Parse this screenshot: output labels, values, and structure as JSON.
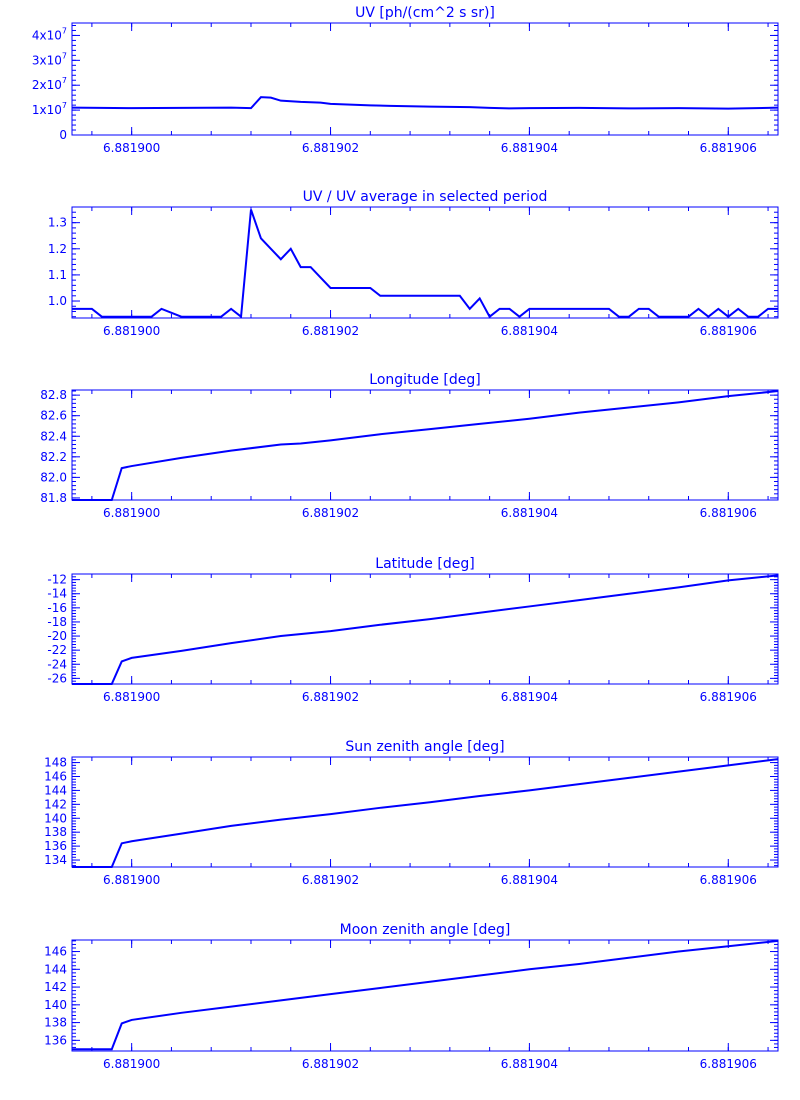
{
  "colors": {
    "ink": "#0000ff",
    "background": "#ffffff"
  },
  "chart_data": [
    {
      "type": "line",
      "title": "UV [ph/(cm^2 s sr)]",
      "xlabel": "",
      "ylabel": "",
      "xlim": [
        6.8818994,
        6.8819065
      ],
      "ylim": [
        0,
        45000000
      ],
      "xticks": [
        6.8819,
        6.881902,
        6.881904,
        6.881906
      ],
      "xtick_labels": [
        "6.881900",
        "6.881902",
        "6.881904",
        "6.881906"
      ],
      "yticks": [
        0,
        10000000,
        20000000,
        30000000,
        40000000
      ],
      "ytick_labels": [
        {
          "base": "0",
          "exp": ""
        },
        {
          "base": "1x10",
          "exp": "7"
        },
        {
          "base": "2x10",
          "exp": "7"
        },
        {
          "base": "3x10",
          "exp": "7"
        },
        {
          "base": "4x10",
          "exp": "7"
        }
      ],
      "grid": false,
      "series": [
        {
          "x": [
            6.8818994,
            6.8819,
            6.881901,
            6.8819012,
            6.8819013,
            6.8819014,
            6.8819015,
            6.8819017,
            6.8819019,
            6.881902,
            6.8819022,
            6.8819024,
            6.8819026,
            6.881903,
            6.8819034,
            6.8819036,
            6.8819038,
            6.881904,
            6.8819045,
            6.881905,
            6.8819055,
            6.881906,
            6.8819064,
            6.8819065
          ],
          "y": [
            11000000,
            10800000,
            11000000,
            10800000,
            15200000,
            15000000,
            13800000,
            13300000,
            13000000,
            12500000,
            12200000,
            11900000,
            11700000,
            11400000,
            11200000,
            10900000,
            10700000,
            10800000,
            10900000,
            10700000,
            10800000,
            10600000,
            10900000,
            11000000
          ]
        }
      ]
    },
    {
      "type": "line",
      "title": "UV / UV average in selected period",
      "xlabel": "",
      "ylabel": "",
      "xlim": [
        6.8818994,
        6.8819065
      ],
      "ylim": [
        0.935,
        1.36
      ],
      "xticks": [
        6.8819,
        6.881902,
        6.881904,
        6.881906
      ],
      "xtick_labels": [
        "6.881900",
        "6.881902",
        "6.881904",
        "6.881906"
      ],
      "yticks": [
        1.0,
        1.1,
        1.2,
        1.3
      ],
      "ytick_labels": [
        {
          "base": "1.0",
          "exp": ""
        },
        {
          "base": "1.1",
          "exp": ""
        },
        {
          "base": "1.2",
          "exp": ""
        },
        {
          "base": "1.3",
          "exp": ""
        }
      ],
      "grid": false,
      "series": [
        {
          "x": [
            6.8818994,
            6.8818996,
            6.8818997,
            6.8818998,
            6.8818999,
            6.8819,
            6.8819002,
            6.8819003,
            6.8819005,
            6.8819006,
            6.8819008,
            6.8819009,
            6.881901,
            6.8819011,
            6.8819012,
            6.8819013,
            6.8819014,
            6.8819015,
            6.8819016,
            6.8819017,
            6.8819018,
            6.8819019,
            6.881902,
            6.8819021,
            6.8819022,
            6.8819023,
            6.8819024,
            6.8819025,
            6.8819026,
            6.8819027,
            6.8819028,
            6.8819029,
            6.881903,
            6.8819031,
            6.8819032,
            6.8819033,
            6.8819034,
            6.8819035,
            6.8819036,
            6.8819037,
            6.8819038,
            6.8819039,
            6.881904,
            6.8819041,
            6.8819042,
            6.8819043,
            6.8819044,
            6.8819045,
            6.8819046,
            6.8819047,
            6.8819048,
            6.8819049,
            6.881905,
            6.8819051,
            6.8819052,
            6.8819053,
            6.8819054,
            6.8819055,
            6.8819056,
            6.8819057,
            6.8819058,
            6.8819059,
            6.881906,
            6.8819061,
            6.8819062,
            6.8819063,
            6.8819064,
            6.8819065
          ],
          "y": [
            0.97,
            0.97,
            0.94,
            0.94,
            0.94,
            0.94,
            0.94,
            0.97,
            0.94,
            0.94,
            0.94,
            0.94,
            0.97,
            0.94,
            1.35,
            1.24,
            1.2,
            1.16,
            1.2,
            1.13,
            1.13,
            1.09,
            1.05,
            1.05,
            1.05,
            1.05,
            1.05,
            1.02,
            1.02,
            1.02,
            1.02,
            1.02,
            1.02,
            1.02,
            1.02,
            1.02,
            0.97,
            1.01,
            0.94,
            0.97,
            0.97,
            0.94,
            0.97,
            0.97,
            0.97,
            0.97,
            0.97,
            0.97,
            0.97,
            0.97,
            0.97,
            0.94,
            0.94,
            0.97,
            0.97,
            0.94,
            0.94,
            0.94,
            0.94,
            0.97,
            0.94,
            0.97,
            0.94,
            0.97,
            0.94,
            0.94,
            0.97,
            0.97
          ]
        }
      ]
    },
    {
      "type": "line",
      "title": "Longitude [deg]",
      "xlabel": "",
      "ylabel": "",
      "xlim": [
        6.8818994,
        6.8819065
      ],
      "ylim": [
        81.78,
        82.85
      ],
      "xticks": [
        6.8819,
        6.881902,
        6.881904,
        6.881906
      ],
      "xtick_labels": [
        "6.881900",
        "6.881902",
        "6.881904",
        "6.881906"
      ],
      "yticks": [
        81.8,
        82.0,
        82.2,
        82.4,
        82.6,
        82.8
      ],
      "ytick_labels": [
        {
          "base": "81.8",
          "exp": ""
        },
        {
          "base": "82.0",
          "exp": ""
        },
        {
          "base": "82.2",
          "exp": ""
        },
        {
          "base": "82.4",
          "exp": ""
        },
        {
          "base": "82.6",
          "exp": ""
        },
        {
          "base": "82.8",
          "exp": ""
        }
      ],
      "grid": false,
      "series": [
        {
          "x": [
            6.8818994,
            6.8818998,
            6.8818999,
            6.8819,
            6.8819005,
            6.881901,
            6.8819015,
            6.8819017,
            6.881902,
            6.8819025,
            6.881903,
            6.8819035,
            6.881904,
            6.8819045,
            6.881905,
            6.8819055,
            6.881906,
            6.8819065
          ],
          "y": [
            81.78,
            81.78,
            82.09,
            82.11,
            82.19,
            82.26,
            82.32,
            82.33,
            82.36,
            82.42,
            82.47,
            82.52,
            82.57,
            82.63,
            82.68,
            82.73,
            82.79,
            82.84
          ]
        }
      ]
    },
    {
      "type": "line",
      "title": "Latitude [deg]",
      "xlabel": "",
      "ylabel": "",
      "xlim": [
        6.8818994,
        6.8819065
      ],
      "ylim": [
        -26.8,
        -11.2
      ],
      "xticks": [
        6.8819,
        6.881902,
        6.881904,
        6.881906
      ],
      "xtick_labels": [
        "6.881900",
        "6.881902",
        "6.881904",
        "6.881906"
      ],
      "yticks": [
        -26,
        -24,
        -22,
        -20,
        -18,
        -16,
        -14,
        -12
      ],
      "ytick_labels": [
        {
          "base": "-26",
          "exp": ""
        },
        {
          "base": "-24",
          "exp": ""
        },
        {
          "base": "-22",
          "exp": ""
        },
        {
          "base": "-20",
          "exp": ""
        },
        {
          "base": "-18",
          "exp": ""
        },
        {
          "base": "-16",
          "exp": ""
        },
        {
          "base": "-14",
          "exp": ""
        },
        {
          "base": "-12",
          "exp": ""
        }
      ],
      "grid": false,
      "series": [
        {
          "x": [
            6.8818994,
            6.8818998,
            6.8818999,
            6.8819,
            6.8819005,
            6.881901,
            6.8819015,
            6.881902,
            6.8819025,
            6.881903,
            6.8819035,
            6.881904,
            6.8819045,
            6.881905,
            6.8819055,
            6.881906,
            6.8819065
          ],
          "y": [
            -26.8,
            -26.8,
            -23.6,
            -23.1,
            -22.1,
            -21.0,
            -20.0,
            -19.3,
            -18.4,
            -17.6,
            -16.7,
            -15.8,
            -14.9,
            -14.0,
            -13.1,
            -12.1,
            -11.4
          ]
        }
      ]
    },
    {
      "type": "line",
      "title": "Sun zenith angle [deg]",
      "xlabel": "",
      "ylabel": "",
      "xlim": [
        6.8818994,
        6.8819065
      ],
      "ylim": [
        133.0,
        148.8
      ],
      "xticks": [
        6.8819,
        6.881902,
        6.881904,
        6.881906
      ],
      "xtick_labels": [
        "6.881900",
        "6.881902",
        "6.881904",
        "6.881906"
      ],
      "yticks": [
        134,
        136,
        138,
        140,
        142,
        144,
        146,
        148
      ],
      "ytick_labels": [
        {
          "base": "134",
          "exp": ""
        },
        {
          "base": "136",
          "exp": ""
        },
        {
          "base": "138",
          "exp": ""
        },
        {
          "base": "140",
          "exp": ""
        },
        {
          "base": "142",
          "exp": ""
        },
        {
          "base": "144",
          "exp": ""
        },
        {
          "base": "146",
          "exp": ""
        },
        {
          "base": "148",
          "exp": ""
        }
      ],
      "grid": false,
      "series": [
        {
          "x": [
            6.8818994,
            6.8818998,
            6.8818999,
            6.8819,
            6.8819005,
            6.881901,
            6.8819015,
            6.881902,
            6.8819025,
            6.881903,
            6.8819035,
            6.881904,
            6.8819045,
            6.881905,
            6.8819055,
            6.881906,
            6.8819065
          ],
          "y": [
            133.0,
            133.0,
            136.4,
            136.7,
            137.8,
            138.9,
            139.8,
            140.6,
            141.5,
            142.3,
            143.2,
            144.0,
            144.9,
            145.8,
            146.7,
            147.6,
            148.5
          ]
        }
      ]
    },
    {
      "type": "line",
      "title": "Moon zenith angle [deg]",
      "xlabel": "",
      "ylabel": "",
      "xlim": [
        6.8818994,
        6.8819065
      ],
      "ylim": [
        134.8,
        147.3
      ],
      "xticks": [
        6.8819,
        6.881902,
        6.881904,
        6.881906
      ],
      "xtick_labels": [
        "6.881900",
        "6.881902",
        "6.881904",
        "6.881906"
      ],
      "yticks": [
        136,
        138,
        140,
        142,
        144,
        146
      ],
      "ytick_labels": [
        {
          "base": "136",
          "exp": ""
        },
        {
          "base": "138",
          "exp": ""
        },
        {
          "base": "140",
          "exp": ""
        },
        {
          "base": "142",
          "exp": ""
        },
        {
          "base": "144",
          "exp": ""
        },
        {
          "base": "146",
          "exp": ""
        }
      ],
      "grid": false,
      "series": [
        {
          "x": [
            6.8818994,
            6.8818998,
            6.8818999,
            6.8819,
            6.8819005,
            6.881901,
            6.8819015,
            6.881902,
            6.8819025,
            6.881903,
            6.8819035,
            6.881904,
            6.8819045,
            6.881905,
            6.8819055,
            6.881906,
            6.8819065
          ],
          "y": [
            135.0,
            135.0,
            137.9,
            138.3,
            139.1,
            139.8,
            140.5,
            141.2,
            141.9,
            142.6,
            143.3,
            144.0,
            144.6,
            145.3,
            146.0,
            146.6,
            147.2
          ]
        }
      ]
    }
  ]
}
